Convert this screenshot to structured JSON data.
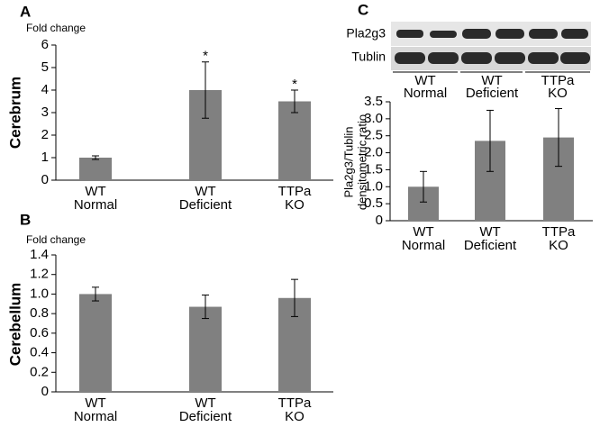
{
  "chart_data": [
    {
      "type": "bar",
      "panel": "A",
      "ylabel": "Cerebrum",
      "ytitle": "Fold change",
      "categories": [
        [
          "WT",
          "Normal"
        ],
        [
          "WT",
          "Deficient"
        ],
        [
          "TTPa",
          "KO"
        ]
      ],
      "values": [
        1.0,
        4.0,
        3.5
      ],
      "errors": [
        0.08,
        1.25,
        0.5
      ],
      "color": "#808080",
      "annotations": [
        {
          "index": 1,
          "text": "*"
        },
        {
          "index": 2,
          "text": "*"
        }
      ],
      "ylim": [
        0,
        6
      ],
      "yticks": [
        0,
        1,
        2,
        3,
        4,
        5,
        6
      ]
    },
    {
      "type": "bar",
      "panel": "B",
      "ylabel": "Cerebellum",
      "ytitle": "Fold change",
      "categories": [
        [
          "WT",
          "Normal"
        ],
        [
          "WT",
          "Deficient"
        ],
        [
          "TTPa",
          "KO"
        ]
      ],
      "values": [
        1.0,
        0.87,
        0.96
      ],
      "errors": [
        0.07,
        0.12,
        0.19
      ],
      "color": "#808080",
      "ylim": [
        0,
        1.4
      ],
      "yticks": [
        0,
        0.2,
        0.4,
        0.6,
        0.8,
        {
          "value": 1,
          "label": "1.0"
        },
        1.2,
        1.4
      ]
    },
    {
      "type": "bar",
      "panel": "C",
      "ylabel": [
        "Pla2g3/Tublin",
        "densitometric ratio"
      ],
      "blot": {
        "rows": [
          "Pla2g3",
          "Tublin"
        ],
        "lanes": [
          [
            "WT",
            "Normal"
          ],
          [
            "WT",
            "Deficient"
          ],
          [
            "TTPa",
            "KO"
          ]
        ]
      },
      "categories": [
        [
          "WT",
          "Normal"
        ],
        [
          "WT",
          "Deficient"
        ],
        [
          "TTPa",
          "KO"
        ]
      ],
      "values": [
        1.0,
        2.35,
        2.45
      ],
      "errors": [
        0.45,
        0.9,
        0.85
      ],
      "color": "#808080",
      "ylim": [
        0,
        3.5
      ],
      "yticks": [
        0,
        0.5,
        {
          "value": 1,
          "label": "1.0"
        },
        1.5,
        {
          "value": 2,
          "label": "2.0"
        },
        2.5,
        {
          "value": 3,
          "label": "3.0"
        },
        3.5
      ]
    }
  ]
}
